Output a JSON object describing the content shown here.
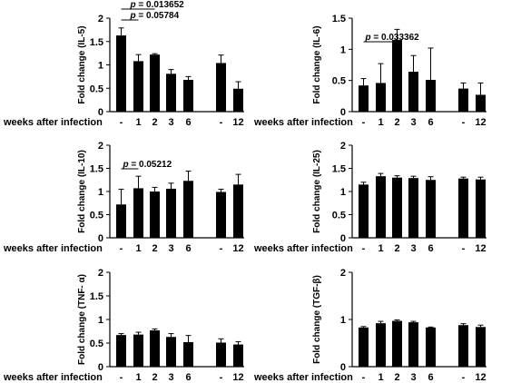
{
  "chart_data": [
    {
      "type": "bar",
      "ylabel": "Fold change (IL-5)",
      "xlabel": "weeks after infection",
      "categories": [
        "-",
        "1",
        "2",
        "3",
        "6",
        "-",
        "12"
      ],
      "values": [
        1.63,
        1.08,
        1.22,
        0.81,
        0.68,
        1.04,
        0.49
      ],
      "errors": [
        0.16,
        0.14,
        0.02,
        0.09,
        0.07,
        0.17,
        0.15
      ],
      "ylim": [
        0,
        2
      ],
      "yticks": [
        "0",
        "0.5",
        "1",
        "1.5",
        "2"
      ],
      "annotations": [
        {
          "p_label": "p",
          "p_value": "= 0.013652",
          "from": 0,
          "to": 2
        },
        {
          "p_label": "p",
          "p_value": "= 0.05784",
          "from": 0,
          "to": 1
        }
      ]
    },
    {
      "type": "bar",
      "ylabel": "Fold change (IL-6)",
      "xlabel": "weeks after infection",
      "categories": [
        "-",
        "1",
        "2",
        "3",
        "6",
        "-",
        "12"
      ],
      "values": [
        0.42,
        0.46,
        1.15,
        0.64,
        0.51,
        0.37,
        0.27
      ],
      "errors": [
        0.11,
        0.31,
        0.17,
        0.26,
        0.51,
        0.09,
        0.19
      ],
      "ylim": [
        0,
        1.5
      ],
      "yticks": [
        "0",
        "0.5",
        "1",
        "1.5"
      ],
      "annotations": [
        {
          "p_label": "p",
          "p_value": "= 0.033362",
          "from": 0,
          "to": 2
        }
      ]
    },
    {
      "type": "bar",
      "ylabel": "Fold change (IL-10)",
      "xlabel": "weeks after infection",
      "categories": [
        "-",
        "1",
        "2",
        "3",
        "6",
        "-",
        "12"
      ],
      "values": [
        0.72,
        1.07,
        1.0,
        1.06,
        1.23,
        0.99,
        1.15
      ],
      "errors": [
        0.33,
        0.26,
        0.09,
        0.12,
        0.21,
        0.06,
        0.22
      ],
      "ylim": [
        0,
        2
      ],
      "yticks": [
        "0",
        "0.5",
        "1",
        "1.5",
        "2"
      ],
      "annotations": [
        {
          "p_label": "p",
          "p_value": "= 0.05212",
          "from": 0,
          "to": 1
        }
      ]
    },
    {
      "type": "bar",
      "ylabel": "Fold change (IL-25)",
      "xlabel": "weeks after infection",
      "categories": [
        "-",
        "1",
        "2",
        "3",
        "6",
        "-",
        "12"
      ],
      "values": [
        1.15,
        1.33,
        1.3,
        1.29,
        1.25,
        1.28,
        1.26
      ],
      "errors": [
        0.05,
        0.06,
        0.04,
        0.04,
        0.07,
        0.03,
        0.05
      ],
      "ylim": [
        0,
        2
      ],
      "yticks": [
        "0",
        "0.5",
        "1",
        "1.5",
        "2"
      ],
      "annotations": []
    },
    {
      "type": "bar",
      "ylabel": "Fold change (TNF- α)",
      "xlabel": "weeks after infection",
      "categories": [
        "-",
        "1",
        "2",
        "3",
        "6",
        "-",
        "12"
      ],
      "values": [
        0.67,
        0.68,
        0.77,
        0.63,
        0.52,
        0.51,
        0.47
      ],
      "errors": [
        0.03,
        0.05,
        0.03,
        0.07,
        0.14,
        0.08,
        0.06
      ],
      "ylim": [
        0,
        2
      ],
      "yticks": [
        "0",
        "0.5",
        "1",
        "1.5",
        "2"
      ],
      "annotations": []
    },
    {
      "type": "bar",
      "ylabel": "Fold change (TGF-β)",
      "xlabel": "weeks after infection",
      "categories": [
        "-",
        "1",
        "2",
        "3",
        "6",
        "-",
        "12"
      ],
      "values": [
        0.83,
        0.92,
        0.97,
        0.94,
        0.83,
        0.88,
        0.84
      ],
      "errors": [
        0.02,
        0.04,
        0.02,
        0.02,
        0.01,
        0.03,
        0.04
      ],
      "ylim": [
        0,
        2
      ],
      "yticks": [
        "0",
        "1",
        "2"
      ],
      "annotations": []
    }
  ]
}
